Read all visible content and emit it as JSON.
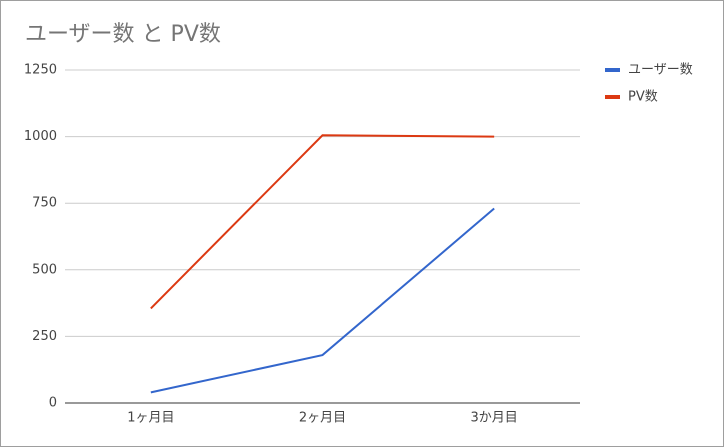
{
  "chart_data": {
    "type": "line",
    "title": "ユーザー数 と PV数",
    "categories": [
      "1ヶ月目",
      "2ヶ月目",
      "3か月目"
    ],
    "series": [
      {
        "name": "ユーザー数",
        "color": "#3366cc",
        "values": [
          40,
          180,
          730
        ]
      },
      {
        "name": "PV数",
        "color": "#dc3912",
        "values": [
          355,
          1005,
          1000
        ]
      }
    ],
    "ylim": [
      0,
      1250
    ],
    "yticks": [
      0,
      250,
      500,
      750,
      1000,
      1250
    ],
    "grid": true,
    "legend": "right"
  }
}
